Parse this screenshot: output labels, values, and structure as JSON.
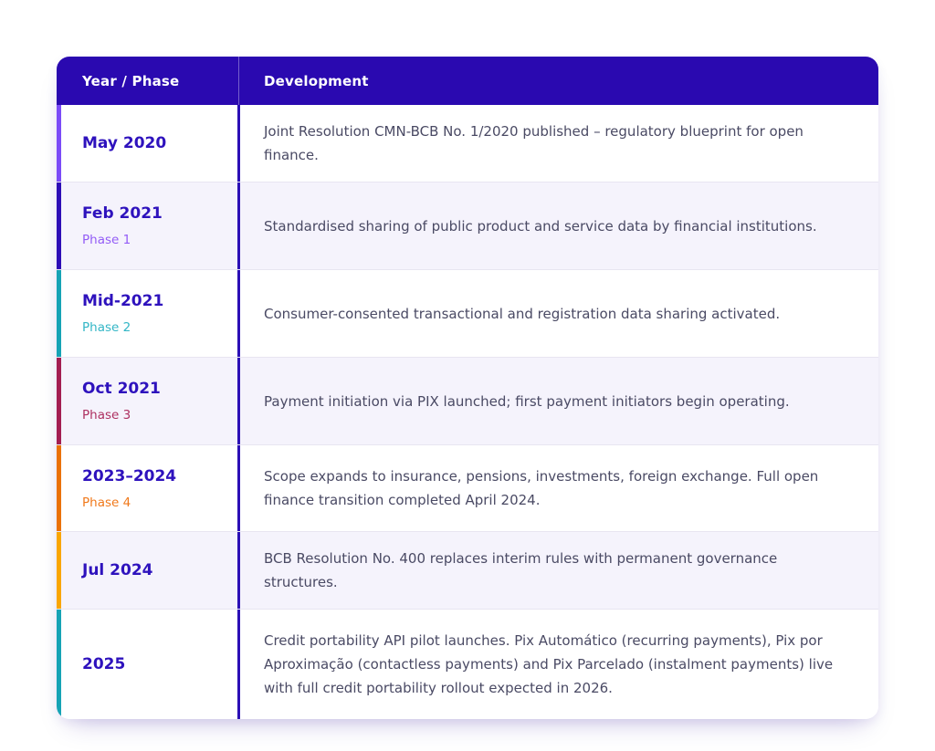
{
  "table": {
    "header": {
      "col1": "Year / Phase",
      "col2": "Development",
      "bg": "#2a09b0",
      "text_color": "#ffffff"
    },
    "palette": {
      "date_text": "#2e12bd",
      "body_text": "#4a4a64",
      "row_alt_bg": "#f5f3fc",
      "row_separator": "#e8e5f1",
      "column_divider": "#2c10b6"
    },
    "rows": [
      {
        "date": "May 2020",
        "phase": "",
        "phase_color": "",
        "accent": "#7b4bf7",
        "description": "Joint Resolution CMN-BCB No. 1/2020 published – regulatory blueprint for open finance."
      },
      {
        "date": "Feb 2021",
        "phase": "Phase 1",
        "phase_color": "#935cf6",
        "accent": "#2d0db6",
        "description": "Standardised sharing of public product and service data by financial institutions."
      },
      {
        "date": "Mid-2021",
        "phase": "Phase 2",
        "phase_color": "#33b6c6",
        "accent": "#16a3b5",
        "description": "Consumer-consented transactional and registration data sharing activated."
      },
      {
        "date": "Oct 2021",
        "phase": "Phase 3",
        "phase_color": "#ad3060",
        "accent": "#a31d51",
        "description": "Payment initiation via PIX launched; first payment initiators begin operating."
      },
      {
        "date": "2023–2024",
        "phase": "Phase 4",
        "phase_color": "#f0791b",
        "accent": "#ea7105",
        "description": "Scope expands to insurance, pensions, investments, foreign exchange. Full open finance transition completed April 2024."
      },
      {
        "date": "Jul 2024",
        "phase": "",
        "phase_color": "",
        "accent": "#f9a602",
        "description": "BCB Resolution No. 400 replaces interim rules with permanent governance structures."
      },
      {
        "date": "2025",
        "phase": "",
        "phase_color": "",
        "accent": "#16a3b5",
        "description": "Credit portability API pilot launches. Pix Automático (recurring payments), Pix por Aproximação (contactless payments) and Pix Parcelado (instalment payments) live with full credit portability rollout expected in 2026."
      }
    ]
  },
  "chart_data": {
    "type": "table",
    "columns": [
      "Year / Phase",
      "Development"
    ],
    "rows": [
      [
        "May 2020",
        "Joint Resolution CMN-BCB No. 1/2020 published – regulatory blueprint for open finance."
      ],
      [
        "Feb 2021 (Phase 1)",
        "Standardised sharing of public product and service data by financial institutions."
      ],
      [
        "Mid-2021 (Phase 2)",
        "Consumer-consented transactional and registration data sharing activated."
      ],
      [
        "Oct 2021 (Phase 3)",
        "Payment initiation via PIX launched; first payment initiators begin operating."
      ],
      [
        "2023–2024 (Phase 4)",
        "Scope expands to insurance, pensions, investments, foreign exchange. Full open finance transition completed April 2024."
      ],
      [
        "Jul 2024",
        "BCB Resolution No. 400 replaces interim rules with permanent governance structures."
      ],
      [
        "2025",
        "Credit portability API pilot launches. Pix Automático (recurring payments), Pix por Aproximação (contactless payments) and Pix Parcelado (instalment payments) live with full credit portability rollout expected in 2026."
      ]
    ]
  }
}
